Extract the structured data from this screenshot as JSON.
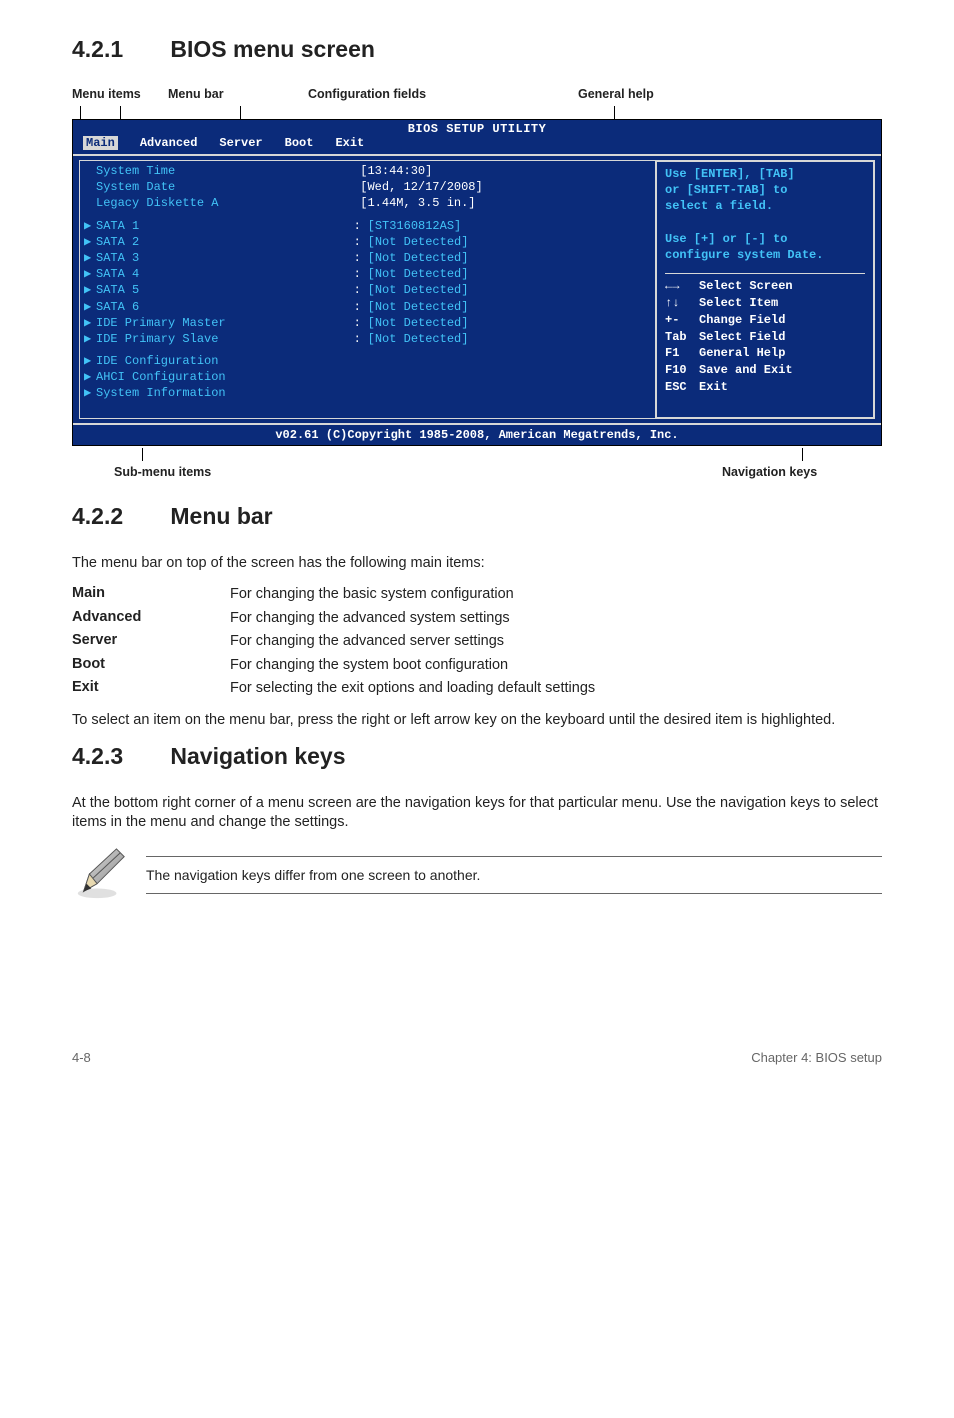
{
  "sections": {
    "s1": {
      "num": "4.2.1",
      "title": "BIOS menu screen"
    },
    "s2": {
      "num": "4.2.2",
      "title": "Menu bar"
    },
    "s3": {
      "num": "4.2.3",
      "title": "Navigation keys"
    }
  },
  "labels": {
    "menu_items": "Menu items",
    "menu_bar": "Menu bar",
    "config_fields": "Configuration fields",
    "general_help": "General help",
    "sub_menu": "Sub-menu items",
    "nav_keys": "Navigation keys"
  },
  "bios": {
    "title": "BIOS SETUP UTILITY",
    "menubar": [
      "Main",
      "Advanced",
      "Server",
      "Boot",
      "Exit"
    ],
    "left_top": [
      {
        "f": "System Time",
        "v": "[13:44:30]"
      },
      {
        "f": "System Date",
        "v": "[Wed, 12/17/2008]"
      },
      {
        "f": "Legacy Diskette A",
        "v": "[1.44M, 3.5 in.]"
      }
    ],
    "left_sata": [
      {
        "f": "SATA 1",
        "v": "[ST3160812AS]"
      },
      {
        "f": "SATA 2",
        "v": "[Not Detected]"
      },
      {
        "f": "SATA 3",
        "v": "[Not Detected]"
      },
      {
        "f": "SATA 4",
        "v": "[Not Detected]"
      },
      {
        "f": "SATA 5",
        "v": "[Not Detected]"
      },
      {
        "f": "SATA 6",
        "v": "[Not Detected]"
      },
      {
        "f": "IDE Primary Master",
        "v": "[Not Detected]"
      },
      {
        "f": "IDE Primary Slave",
        "v": "[Not Detected]"
      }
    ],
    "left_bottom": [
      "IDE Configuration",
      "AHCI Configuration",
      "System Information"
    ],
    "right_top": [
      "Use [ENTER], [TAB]",
      "or [SHIFT-TAB] to",
      "select a field.",
      "",
      "Use [+] or [-] to",
      "configure system Date."
    ],
    "nav": [
      {
        "k": "←→",
        "t": "Select Screen"
      },
      {
        "k": "↑↓",
        "t": "Select Item"
      },
      {
        "k": "+-",
        "t": "Change Field"
      },
      {
        "k": "Tab",
        "t": "Select Field"
      },
      {
        "k": "F1",
        "t": "General Help"
      },
      {
        "k": "F10",
        "t": "Save and Exit"
      },
      {
        "k": "ESC",
        "t": "Exit"
      }
    ],
    "footer": "v02.61 (C)Copyright 1985-2008, American Megatrends, Inc."
  },
  "p_menubar_intro": "The menu bar on top of the screen has the following main items:",
  "menubar_items": [
    {
      "t": "Main",
      "d": "For changing the basic system configuration"
    },
    {
      "t": "Advanced",
      "d": "For changing the advanced system settings"
    },
    {
      "t": "Server",
      "d": "For changing the advanced server settings"
    },
    {
      "t": "Boot",
      "d": "For changing the system boot configuration"
    },
    {
      "t": "Exit",
      "d": "For selecting the exit options and loading default settings"
    }
  ],
  "p_menubar_after": "To select an item on the menu bar, press the right or left arrow key on the keyboard until the desired item is highlighted.",
  "p_navkeys": "At the bottom right corner of a menu screen are the navigation keys for that particular menu. Use the navigation keys to select items in the menu and change the settings.",
  "note": "The navigation keys differ from one screen to another.",
  "footer": {
    "left": "4-8",
    "right": "Chapter 4: BIOS setup"
  },
  "colors": {
    "bios_bg": "#0b2b7a",
    "bios_cyan": "#42c3f7",
    "bios_grey": "#d7d7d7"
  }
}
